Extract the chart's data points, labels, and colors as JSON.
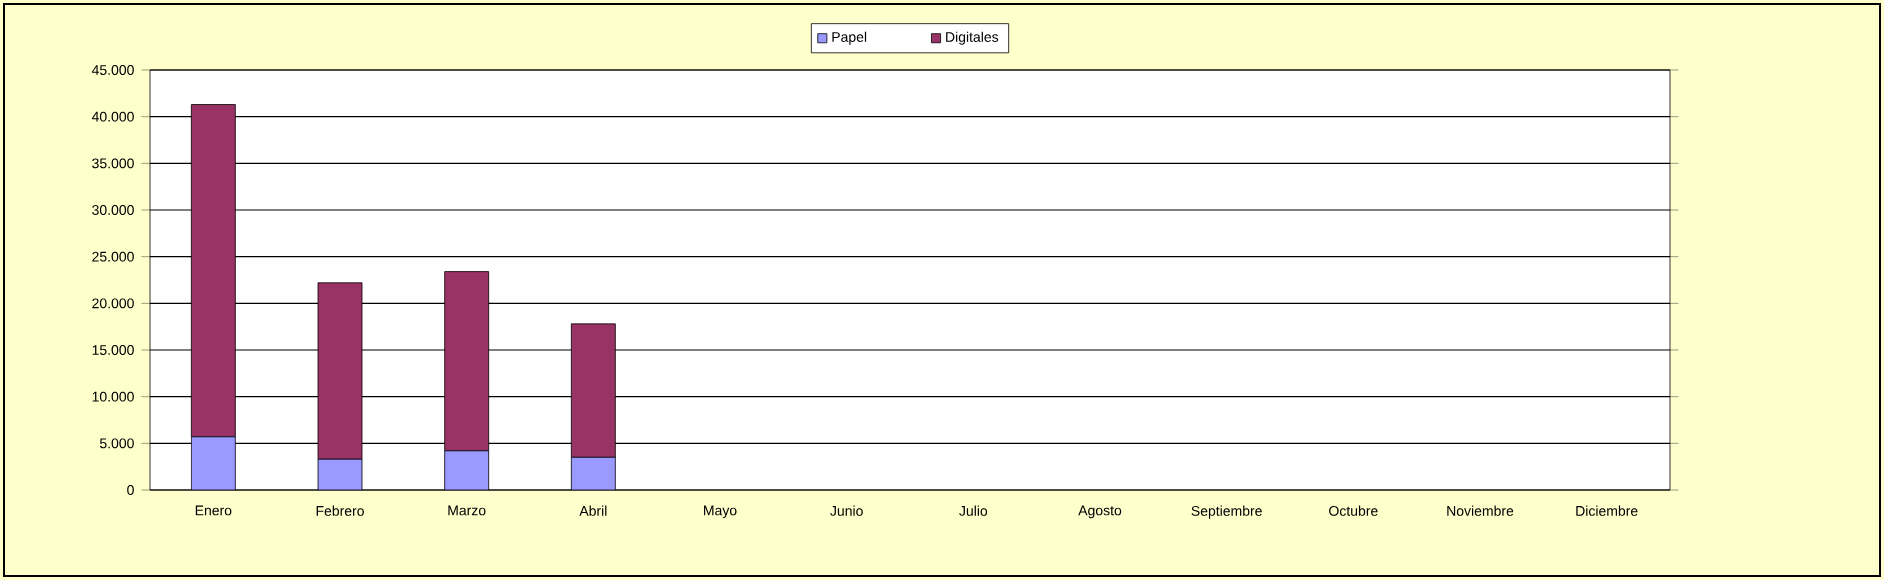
{
  "chart_data": {
    "type": "bar",
    "stacked": true,
    "categories": [
      "Enero",
      "Febrero",
      "Marzo",
      "Abril",
      "Mayo",
      "Junio",
      "Julio",
      "Agosto",
      "Septiembre",
      "Octubre",
      "Noviembre",
      "Diciembre"
    ],
    "series": [
      {
        "name": "Papel",
        "color": "#9999ff",
        "values": [
          5700,
          3300,
          4200,
          3500,
          0,
          0,
          0,
          0,
          0,
          0,
          0,
          0
        ]
      },
      {
        "name": "Digitales",
        "color": "#993366",
        "values": [
          35600,
          18900,
          19200,
          14300,
          0,
          0,
          0,
          0,
          0,
          0,
          0,
          0
        ]
      }
    ],
    "ylim": [
      0,
      45000
    ],
    "yticks": [
      0,
      {
        "value": 5000,
        "label": "5.000"
      },
      {
        "value": 10000,
        "label": "10.000"
      },
      {
        "value": 15000,
        "label": "15.000"
      },
      {
        "value": 20000,
        "label": "20.000"
      },
      {
        "value": 25000,
        "label": "25.000"
      },
      {
        "value": 30000,
        "label": "30.000"
      },
      {
        "value": 35000,
        "label": "35.000"
      },
      {
        "value": 40000,
        "label": "40.000"
      },
      {
        "value": 45000,
        "label": "45.000"
      }
    ],
    "grid": "y",
    "legend": "top"
  }
}
